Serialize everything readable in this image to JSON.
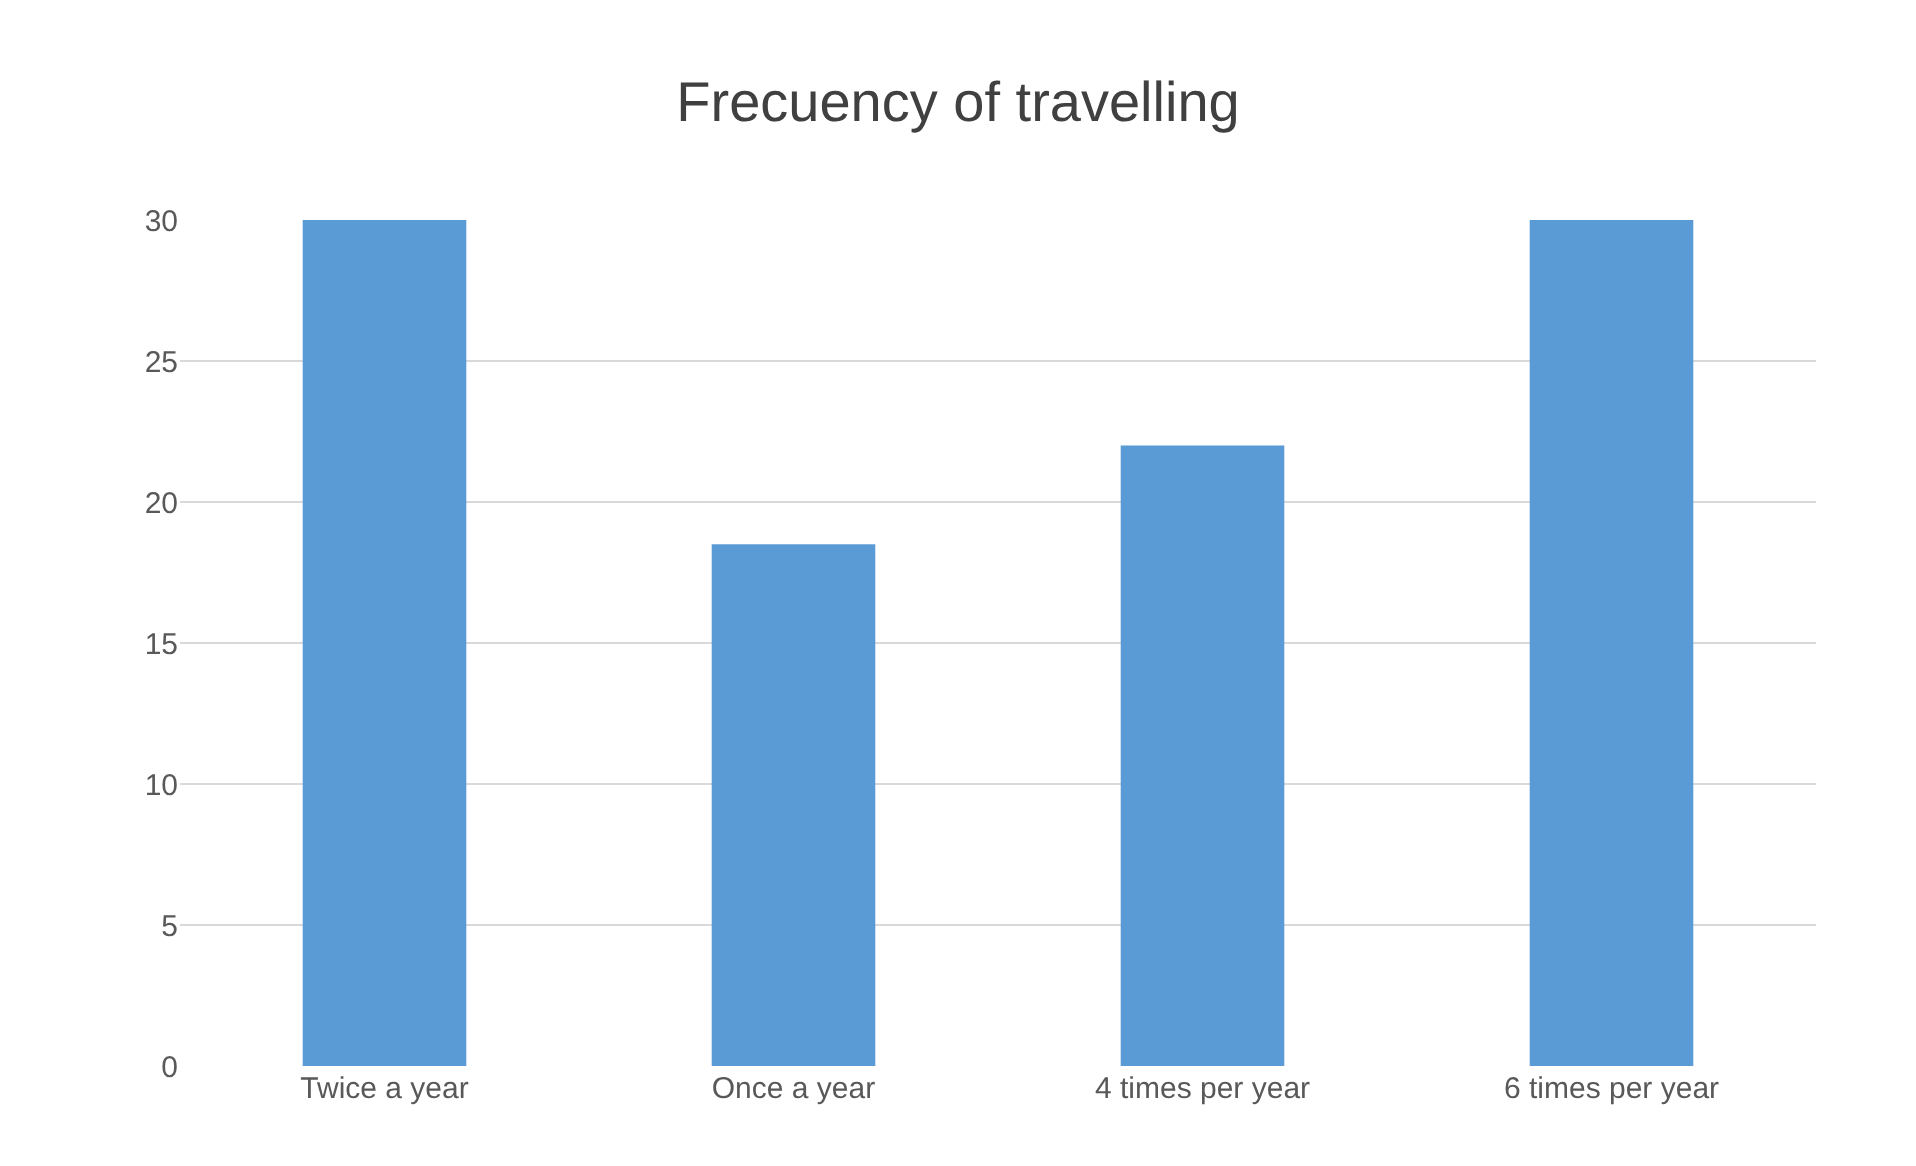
{
  "chart_data": {
    "type": "bar",
    "title": "Frecuency of travelling",
    "categories": [
      "Twice a year",
      "Once a year",
      "4 times per year",
      "6 times per year"
    ],
    "values": [
      30,
      18.5,
      22,
      30
    ],
    "color": "#5b9bd5",
    "ylim": [
      0,
      30
    ],
    "yticks": [
      0,
      5,
      10,
      15,
      20,
      25,
      30
    ],
    "grid": "y"
  }
}
